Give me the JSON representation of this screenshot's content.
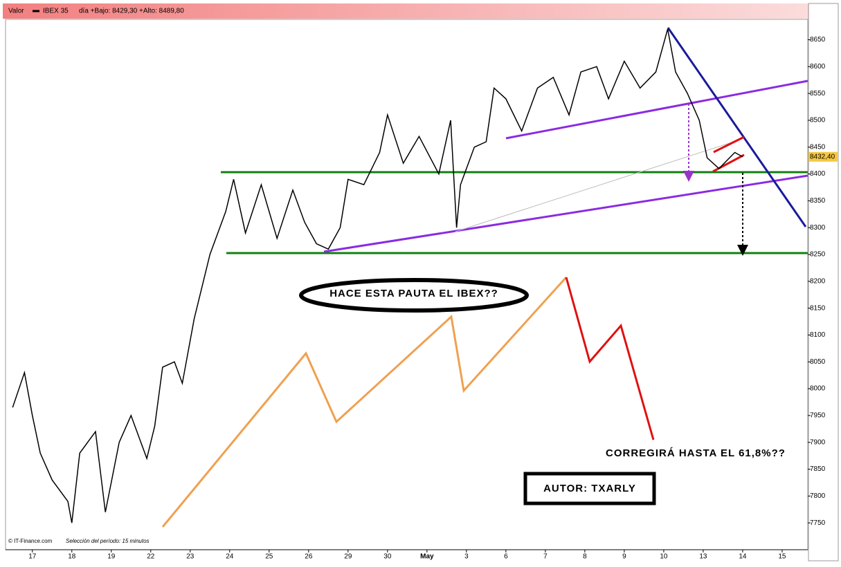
{
  "header": {
    "field": "Valor",
    "instrument": "IBEX 35",
    "stats": "día +Bajo: 8429,30 +Alto: 8489,80"
  },
  "chart_data": {
    "type": "line",
    "x": [
      -0.5,
      -0.2,
      0,
      0.2,
      0.5,
      0.9,
      1.0,
      1.2,
      1.6,
      1.85,
      2.2,
      2.5,
      2.9,
      3.1,
      3.3,
      3.6,
      3.8,
      4.1,
      4.5,
      4.9,
      5.1,
      5.4,
      5.8,
      6.2,
      6.6,
      6.9,
      7.2,
      7.5,
      7.8,
      8.0,
      8.4,
      8.8,
      9.0,
      9.4,
      9.8,
      10.3,
      10.6,
      10.75,
      10.85,
      11.2,
      11.5,
      11.7,
      12.0,
      12.4,
      12.8,
      13.2,
      13.6,
      13.9,
      14.3,
      14.6,
      15.0,
      15.4,
      15.8,
      16.1,
      16.3,
      16.6,
      16.9,
      17.1,
      17.4,
      17.8,
      18.0
    ],
    "series": [
      {
        "name": "IBEX 35",
        "color": "#000000",
        "values": [
          7965,
          8030,
          7950,
          7880,
          7830,
          7790,
          7750,
          7880,
          7920,
          7770,
          7900,
          7950,
          7870,
          7930,
          8040,
          8050,
          8010,
          8130,
          8250,
          8330,
          8390,
          8290,
          8380,
          8280,
          8370,
          8310,
          8270,
          8260,
          8300,
          8390,
          8380,
          8440,
          8510,
          8420,
          8470,
          8400,
          8500,
          8300,
          8380,
          8450,
          8460,
          8560,
          8540,
          8480,
          8560,
          8580,
          8510,
          8590,
          8600,
          8540,
          8610,
          8560,
          8590,
          8670,
          8590,
          8550,
          8500,
          8430,
          8410,
          8440,
          8432
        ]
      }
    ],
    "last_label": "8432,40",
    "xlim": [
      -0.68,
      19.65
    ],
    "xticks": [
      {
        "value": 0,
        "label": "17"
      },
      {
        "value": 1,
        "label": "18"
      },
      {
        "value": 2,
        "label": "19"
      },
      {
        "value": 3,
        "label": "22"
      },
      {
        "value": 4,
        "label": "23"
      },
      {
        "value": 5,
        "label": "24"
      },
      {
        "value": 6,
        "label": "25"
      },
      {
        "value": 7,
        "label": "26"
      },
      {
        "value": 8,
        "label": "29"
      },
      {
        "value": 9,
        "label": "30"
      },
      {
        "value": 10,
        "label": "May"
      },
      {
        "value": 11,
        "label": "3"
      },
      {
        "value": 12,
        "label": "6"
      },
      {
        "value": 13,
        "label": "7"
      },
      {
        "value": 14,
        "label": "8"
      },
      {
        "value": 15,
        "label": "9"
      },
      {
        "value": 16,
        "label": "10"
      },
      {
        "value": 17,
        "label": "13"
      },
      {
        "value": 18,
        "label": "14"
      },
      {
        "value": 19,
        "label": "15"
      }
    ],
    "ylim": [
      7700,
      8688
    ],
    "yticks": [
      7750,
      7800,
      7850,
      7900,
      7950,
      8000,
      8050,
      8100,
      8150,
      8200,
      8250,
      8300,
      8350,
      8400,
      8450,
      8500,
      8550,
      8600,
      8650
    ]
  },
  "annotations": {
    "question": "HACE ESTA PAUTA EL IBEX??",
    "target": "CORREGIRÁ HASTA EL 61,8%??",
    "author": "AUTOR: TXARLY"
  },
  "footer": {
    "source": "© IT-Finance.com",
    "period": "Selección del período: 15 minutos"
  }
}
